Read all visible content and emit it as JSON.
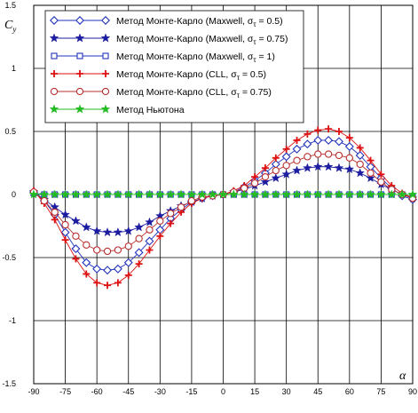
{
  "chart_data": {
    "type": "line",
    "ylabel": "C",
    "ylabel_sub": "y",
    "xlabel": "α",
    "xlim": [
      -90,
      90
    ],
    "ylim": [
      -1.5,
      1.5
    ],
    "grid": true,
    "legend_placement": "top-left",
    "x_ticks": [
      -90,
      -75,
      -60,
      -45,
      -30,
      -15,
      0,
      15,
      30,
      45,
      60,
      75,
      90
    ],
    "y_ticks": [
      -1.5,
      -1,
      -0.5,
      0,
      0.5,
      1,
      1.5
    ],
    "x_tick_labels": [
      "-90",
      "-75",
      "-60",
      "-45",
      "-30",
      "-15",
      "0",
      "15",
      "30",
      "45",
      "60",
      "75",
      "90"
    ],
    "y_tick_labels": [
      "-1.5",
      "-1",
      "-0.5",
      "0",
      "0.5",
      "1",
      "1.5"
    ],
    "x": [
      -90,
      -85,
      -80,
      -75,
      -70,
      -65,
      -60,
      -55,
      -50,
      -45,
      -40,
      -35,
      -30,
      -25,
      -20,
      -15,
      -10,
      -5,
      0,
      5,
      10,
      15,
      20,
      25,
      30,
      35,
      40,
      45,
      50,
      55,
      60,
      65,
      70,
      75,
      80,
      85,
      90
    ],
    "series": [
      {
        "name": "Метод Монте-Карло (Maxwell,  σ",
        "sigma": "τ",
        "value_text": " = 0.5)",
        "color": "#2233bb",
        "marker": "diamond",
        "values": [
          0.02,
          -0.05,
          -0.16,
          -0.3,
          -0.43,
          -0.54,
          -0.59,
          -0.6,
          -0.59,
          -0.54,
          -0.46,
          -0.37,
          -0.28,
          -0.19,
          -0.12,
          -0.06,
          -0.03,
          -0.01,
          0.0,
          0.02,
          0.06,
          0.11,
          0.17,
          0.24,
          0.3,
          0.36,
          0.4,
          0.43,
          0.43,
          0.42,
          0.38,
          0.31,
          0.22,
          0.13,
          0.05,
          -0.01,
          -0.04
        ]
      },
      {
        "name": "Метод Монте-Карло (Maxwell,  σ",
        "sigma": "τ",
        "value_text": " = 0.75)",
        "color": "#1c1ca0",
        "marker": "star",
        "values": [
          0.02,
          -0.04,
          -0.1,
          -0.16,
          -0.21,
          -0.26,
          -0.29,
          -0.3,
          -0.3,
          -0.29,
          -0.26,
          -0.22,
          -0.17,
          -0.13,
          -0.09,
          -0.06,
          -0.03,
          -0.01,
          0.0,
          0.02,
          0.04,
          0.07,
          0.1,
          0.13,
          0.16,
          0.19,
          0.21,
          0.22,
          0.22,
          0.21,
          0.2,
          0.17,
          0.13,
          0.08,
          0.04,
          0.0,
          -0.03
        ]
      },
      {
        "name": "Метод Монте-Карло (Maxwell,  σ",
        "sigma": "τ",
        "value_text": " = 1)",
        "color": "#2233bb",
        "marker": "square",
        "values": [
          0.01,
          0.0,
          0.0,
          0.0,
          0.0,
          0.0,
          0.0,
          0.0,
          0.0,
          0.0,
          0.0,
          0.0,
          0.0,
          0.0,
          0.0,
          0.0,
          0.0,
          0.0,
          0.0,
          0.0,
          0.0,
          0.0,
          0.0,
          0.0,
          0.0,
          0.0,
          0.0,
          0.0,
          0.0,
          0.0,
          0.0,
          0.0,
          0.0,
          0.0,
          0.0,
          0.0,
          -0.02
        ]
      },
      {
        "name": "Метод Монте-Карло (CLL,  σ",
        "sigma": "τ",
        "value_text": " = 0.5)",
        "color": "#dd1111",
        "marker": "plus",
        "values": [
          0.03,
          -0.07,
          -0.2,
          -0.36,
          -0.51,
          -0.63,
          -0.7,
          -0.72,
          -0.7,
          -0.64,
          -0.55,
          -0.44,
          -0.33,
          -0.23,
          -0.14,
          -0.07,
          -0.03,
          -0.01,
          0.0,
          0.03,
          0.07,
          0.14,
          0.21,
          0.29,
          0.36,
          0.43,
          0.48,
          0.51,
          0.52,
          0.5,
          0.45,
          0.37,
          0.27,
          0.16,
          0.07,
          0.01,
          -0.03
        ]
      },
      {
        "name": "Метод Монте-Карло (CLL,  σ",
        "sigma": "τ",
        "value_text": " = 0.75)",
        "color": "#b83030",
        "marker": "circle",
        "values": [
          0.02,
          -0.05,
          -0.14,
          -0.24,
          -0.33,
          -0.4,
          -0.44,
          -0.45,
          -0.44,
          -0.41,
          -0.35,
          -0.28,
          -0.21,
          -0.15,
          -0.1,
          -0.05,
          -0.02,
          -0.01,
          0.0,
          0.02,
          0.05,
          0.09,
          0.14,
          0.19,
          0.23,
          0.27,
          0.3,
          0.32,
          0.32,
          0.31,
          0.29,
          0.24,
          0.17,
          0.1,
          0.04,
          0.0,
          -0.03
        ]
      },
      {
        "name": "Метод Ньютона",
        "sigma": "",
        "value_text": "",
        "color": "#22bb22",
        "marker": "star",
        "values": [
          0.0,
          0.0,
          0.0,
          0.0,
          0.0,
          0.0,
          0.0,
          0.0,
          0.0,
          0.0,
          0.0,
          0.0,
          0.0,
          0.0,
          0.0,
          0.0,
          0.0,
          0.0,
          0.0,
          0.0,
          0.0,
          0.0,
          0.0,
          0.0,
          0.0,
          0.0,
          0.0,
          0.0,
          0.0,
          0.0,
          0.0,
          0.0,
          0.0,
          0.0,
          0.0,
          0.0,
          0.0
        ]
      }
    ]
  }
}
